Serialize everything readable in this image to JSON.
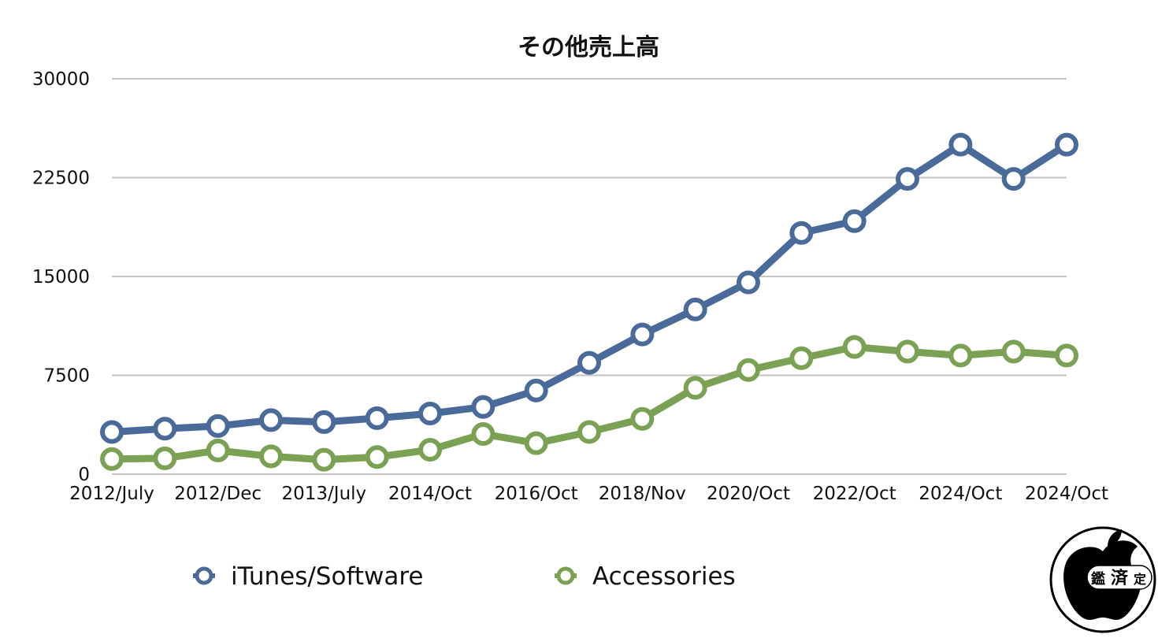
{
  "chart_data": {
    "type": "line",
    "title": "その他売上高",
    "xlabel": "",
    "ylabel": "",
    "ylim": [
      0,
      30000
    ],
    "yticks": [
      "0",
      "7500",
      "15000",
      "22500",
      "30000"
    ],
    "ytick_values": [
      0,
      7500,
      15000,
      22500,
      30000
    ],
    "x_tick_labels": [
      "2012/July",
      "2012/Dec",
      "2013/July",
      "2014/Oct",
      "2016/Oct",
      "2018/Nov",
      "2020/Oct",
      "2022/Oct",
      "2024/Oct",
      "2024/Oct"
    ],
    "n_points": 19,
    "grid": true,
    "legend_position": "bottom",
    "series": [
      {
        "name": "iTunes/Software",
        "color": "#4a6b99",
        "values": [
          3200,
          3450,
          3650,
          4100,
          3950,
          4250,
          4600,
          5100,
          6350,
          8450,
          10600,
          12500,
          14550,
          18300,
          19200,
          22400,
          25000,
          22400,
          25000
        ]
      },
      {
        "name": "Accessories",
        "color": "#7aa154",
        "values": [
          1150,
          1200,
          1800,
          1350,
          1100,
          1300,
          1850,
          3050,
          2350,
          3200,
          4200,
          6550,
          7900,
          8800,
          9650,
          9300,
          9000,
          9300,
          9000
        ]
      }
    ]
  },
  "badge": {
    "text_main": "鑑",
    "text_second": "済",
    "text_third": "定"
  }
}
